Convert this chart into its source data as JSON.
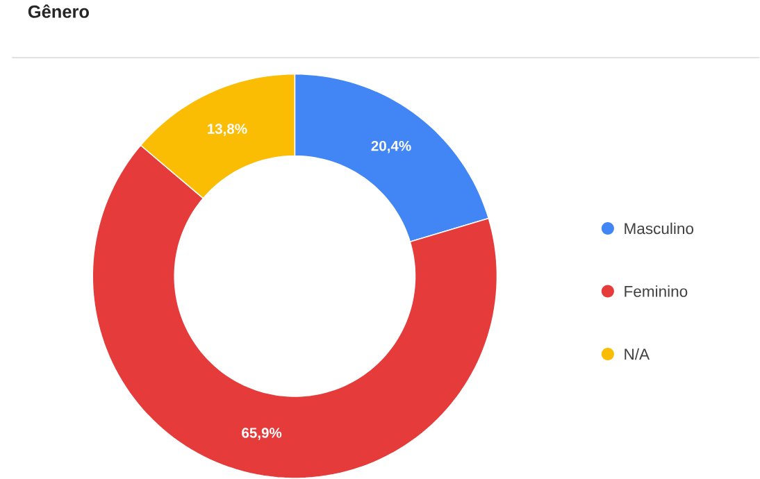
{
  "chart_data": {
    "type": "donut",
    "title": "Gênero",
    "categories": [
      "Masculino",
      "Feminino",
      "N/A"
    ],
    "values": [
      20.4,
      65.9,
      13.8
    ],
    "colors": [
      "#4285f4",
      "#e53b3b",
      "#fbbc04"
    ],
    "value_labels": [
      "20,4%",
      "65,9%",
      "13,8%"
    ],
    "legend": "right"
  }
}
